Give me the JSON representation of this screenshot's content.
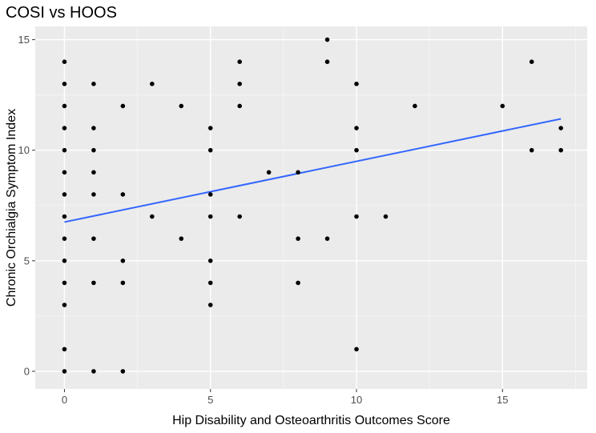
{
  "chart_data": {
    "type": "scatter",
    "title": "COSI vs HOOS",
    "xlabel": "Hip Disability and Osteoarthritis Outcomes Score",
    "ylabel": "Chronic Orchialgia Symptom Index",
    "xlim": [
      -1.0,
      17.9
    ],
    "ylim": [
      -0.8,
      15.6
    ],
    "xticks": [
      0,
      5,
      10,
      15
    ],
    "yticks": [
      0,
      5,
      10,
      15
    ],
    "grid": true,
    "background_color": "#ebebeb",
    "grid_color": "#ffffff",
    "point_color": "#000000",
    "trend_color": "#3366ff",
    "points": [
      {
        "x": 0,
        "y": 0
      },
      {
        "x": 0,
        "y": 1
      },
      {
        "x": 0,
        "y": 3
      },
      {
        "x": 0,
        "y": 4
      },
      {
        "x": 0,
        "y": 5
      },
      {
        "x": 0,
        "y": 6
      },
      {
        "x": 0,
        "y": 7
      },
      {
        "x": 0,
        "y": 8
      },
      {
        "x": 0,
        "y": 9
      },
      {
        "x": 0,
        "y": 10
      },
      {
        "x": 0,
        "y": 11
      },
      {
        "x": 0,
        "y": 12
      },
      {
        "x": 0,
        "y": 13
      },
      {
        "x": 0,
        "y": 14
      },
      {
        "x": 1,
        "y": 0
      },
      {
        "x": 1,
        "y": 4
      },
      {
        "x": 1,
        "y": 6
      },
      {
        "x": 1,
        "y": 8
      },
      {
        "x": 1,
        "y": 9
      },
      {
        "x": 1,
        "y": 10
      },
      {
        "x": 1,
        "y": 11
      },
      {
        "x": 1,
        "y": 13
      },
      {
        "x": 2,
        "y": 0
      },
      {
        "x": 2,
        "y": 4
      },
      {
        "x": 2,
        "y": 5
      },
      {
        "x": 2,
        "y": 8
      },
      {
        "x": 2,
        "y": 12
      },
      {
        "x": 3,
        "y": 7
      },
      {
        "x": 3,
        "y": 13
      },
      {
        "x": 4,
        "y": 6
      },
      {
        "x": 4,
        "y": 12
      },
      {
        "x": 5,
        "y": 3
      },
      {
        "x": 5,
        "y": 4
      },
      {
        "x": 5,
        "y": 5
      },
      {
        "x": 5,
        "y": 7
      },
      {
        "x": 5,
        "y": 8
      },
      {
        "x": 5,
        "y": 10
      },
      {
        "x": 5,
        "y": 11
      },
      {
        "x": 6,
        "y": 7
      },
      {
        "x": 6,
        "y": 12
      },
      {
        "x": 6,
        "y": 13
      },
      {
        "x": 6,
        "y": 14
      },
      {
        "x": 7,
        "y": 9
      },
      {
        "x": 8,
        "y": 4
      },
      {
        "x": 8,
        "y": 6
      },
      {
        "x": 8,
        "y": 9
      },
      {
        "x": 9,
        "y": 6
      },
      {
        "x": 9,
        "y": 14
      },
      {
        "x": 9,
        "y": 15
      },
      {
        "x": 10,
        "y": 1
      },
      {
        "x": 10,
        "y": 7
      },
      {
        "x": 10,
        "y": 10
      },
      {
        "x": 10,
        "y": 11
      },
      {
        "x": 10,
        "y": 13
      },
      {
        "x": 11,
        "y": 7
      },
      {
        "x": 12,
        "y": 12
      },
      {
        "x": 15,
        "y": 12
      },
      {
        "x": 16,
        "y": 10
      },
      {
        "x": 16,
        "y": 14
      },
      {
        "x": 17,
        "y": 10
      },
      {
        "x": 17,
        "y": 11
      }
    ],
    "trend_line": {
      "x": [
        0,
        17
      ],
      "y": [
        6.75,
        11.42
      ]
    }
  }
}
